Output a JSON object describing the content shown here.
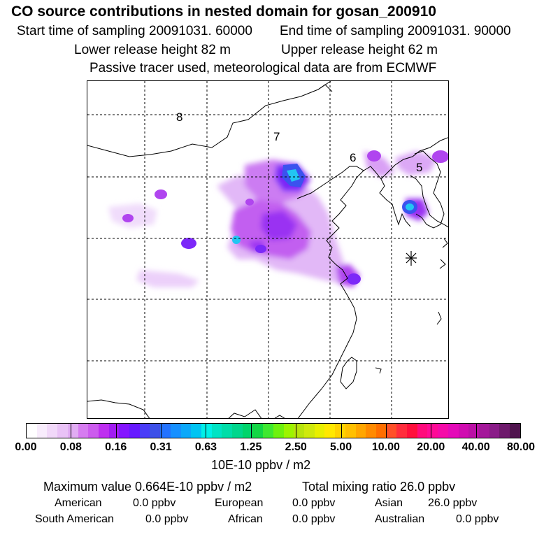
{
  "title": "CO  source contributions in nested domain for gosan_200910",
  "start_time": "Start time of sampling 20091031. 60000",
  "end_time": "End time of sampling 20091031. 90000",
  "lower_height": "Lower release height   82 m",
  "upper_height": "Upper release height   62 m",
  "tracer_info": "Passive tracer used, meteorological data are from ECMWF",
  "map": {
    "region_labels": [
      "8",
      "7",
      "6",
      "5"
    ],
    "receptor_icon": "asterisk-receptor-marker"
  },
  "colorbar": {
    "unit": "10E-10 ppbv / m2",
    "tick_labels": [
      "0.00",
      "0.08",
      "0.16",
      "0.31",
      "0.63",
      "1.25",
      "2.50",
      "5.00",
      "10.00",
      "20.00",
      "40.00",
      "80.00"
    ],
    "colors": [
      "#ffffff",
      "#f8ecfc",
      "#f1d8f9",
      "#e9c2f6",
      "#e1acf3",
      "#d67cf0",
      "#cc5cee",
      "#be2ff0",
      "#a11cf2",
      "#8415ff",
      "#6619ff",
      "#4a3cf8",
      "#3d50e8",
      "#2373ff",
      "#1790ff",
      "#0ca8fa",
      "#00c4f3",
      "#00f0e8",
      "#00e3c4",
      "#00dda8",
      "#00d68c",
      "#00d46b",
      "#12d644",
      "#3ee830",
      "#6ef10e",
      "#9cf400",
      "#b8e40c",
      "#cfe90c",
      "#e8ef00",
      "#ffe800",
      "#ffd200",
      "#ffc000",
      "#ffa600",
      "#ff8a00",
      "#ff6e00",
      "#ff5028",
      "#ff2d3c",
      "#ff0f3c",
      "#ff0a7c",
      "#ff0a96",
      "#f50aa8",
      "#e40ab8",
      "#d00cb0",
      "#bb10a6",
      "#a4189a",
      "#8a1c88",
      "#6e1a6c",
      "#50144e"
    ]
  },
  "summary": {
    "max_value": "Maximum value  0.664E-10 ppbv / m2",
    "total_mixing": "Total mixing ratio       26.0 ppbv",
    "rows": [
      [
        {
          "label": "American",
          "value": "0.0 ppbv"
        },
        {
          "label": "European",
          "value": "0.0 ppbv"
        },
        {
          "label": "Asian",
          "value": "26.0 ppbv"
        }
      ],
      [
        {
          "label": "South American",
          "value": "0.0 ppbv"
        },
        {
          "label": "African",
          "value": "0.0 ppbv"
        },
        {
          "label": "Australian",
          "value": "0.0 ppbv"
        }
      ]
    ]
  }
}
